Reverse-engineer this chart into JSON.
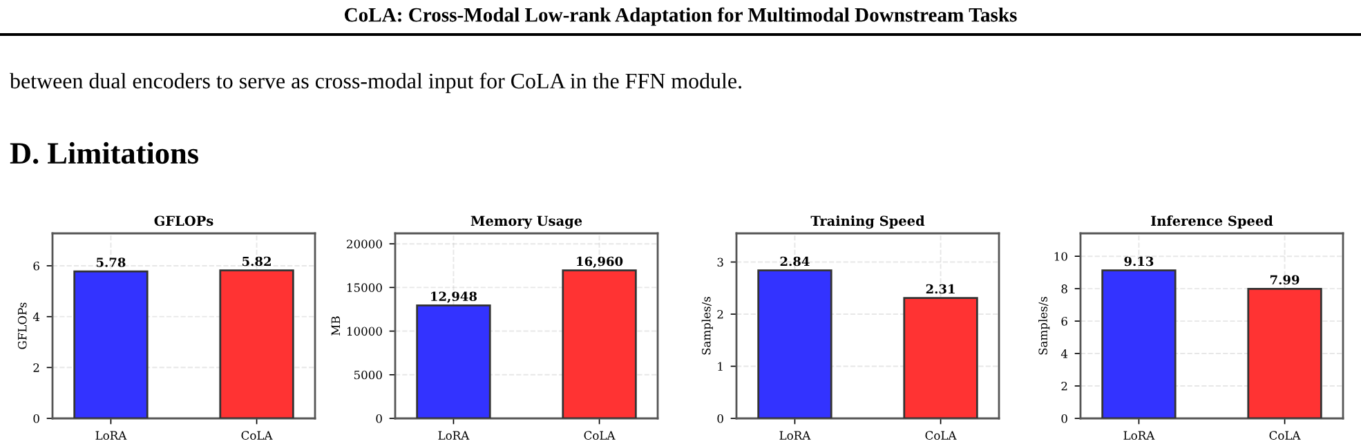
{
  "chart_data": [
    {
      "type": "bar",
      "title": "GFLOPs",
      "ylabel": "GFLOPs",
      "categories": [
        "LoRA",
        "CoLA"
      ],
      "values": [
        5.78,
        5.82
      ],
      "colors": [
        "#3333ff",
        "#ff3333"
      ],
      "value_labels": [
        "5.78",
        "5.82"
      ],
      "ylim": [
        0,
        7.275
      ],
      "yticks": [
        0,
        2,
        4,
        6
      ],
      "grid": true,
      "annotations": [
        "CoLA: Cross-Modal Low-rank Adaptation for Multimodal Downstream Tasks",
        "between dual encoders to serve as cross-modal input for CoLA in the FFN module.",
        "D. Limitations"
      ]
    },
    {
      "type": "bar",
      "title": "Memory Usage",
      "ylabel": "MB",
      "categories": [
        "LoRA",
        "CoLA"
      ],
      "values": [
        12948,
        16960
      ],
      "colors": [
        "#3333ff",
        "#ff3333"
      ],
      "value_labels": [
        "12,948",
        "16,960"
      ],
      "ylim": [
        0,
        21200
      ],
      "yticks": [
        0,
        5000,
        10000,
        15000,
        20000
      ],
      "grid": true
    },
    {
      "type": "bar",
      "title": "Training Speed",
      "ylabel": "Samples/s",
      "categories": [
        "LoRA",
        "CoLA"
      ],
      "values": [
        2.84,
        2.31
      ],
      "colors": [
        "#3333ff",
        "#ff3333"
      ],
      "value_labels": [
        "2.84",
        "2.31"
      ],
      "ylim": [
        0,
        3.55
      ],
      "yticks": [
        0,
        1,
        2,
        3
      ],
      "grid": true
    },
    {
      "type": "bar",
      "title": "Inference Speed",
      "ylabel": "Samples/s",
      "categories": [
        "LoRA",
        "CoLA"
      ],
      "values": [
        9.13,
        7.99
      ],
      "colors": [
        "#3333ff",
        "#ff3333"
      ],
      "value_labels": [
        "9.13",
        "7.99"
      ],
      "ylim": [
        0,
        11.4125
      ],
      "yticks": [
        0,
        2,
        4,
        6,
        8,
        10
      ],
      "grid": true
    }
  ]
}
